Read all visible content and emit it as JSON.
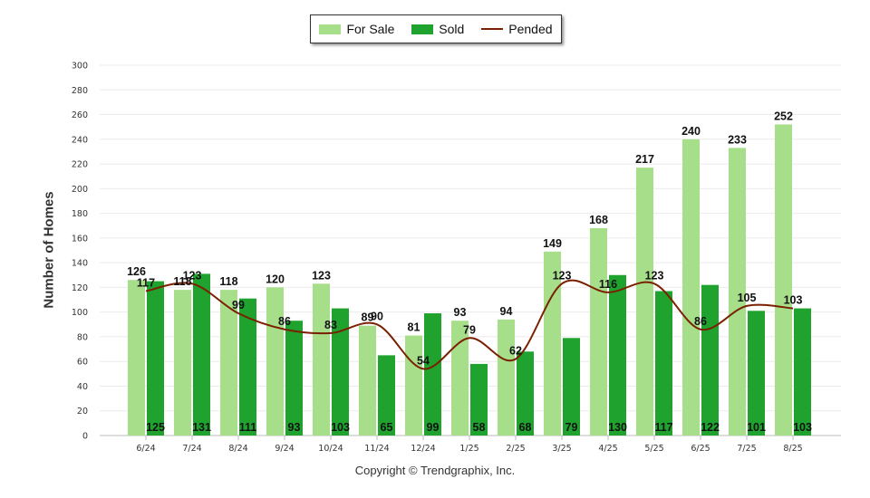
{
  "chart_data": {
    "type": "bar",
    "ylabel": "Number of Homes",
    "ylim": [
      0,
      300
    ],
    "ytick_step": 20,
    "categories": [
      "6/24",
      "7/24",
      "8/24",
      "9/24",
      "10/24",
      "11/24",
      "12/24",
      "1/25",
      "2/25",
      "3/25",
      "4/25",
      "5/25",
      "6/25",
      "7/25",
      "8/25"
    ],
    "series": [
      {
        "name": "For Sale",
        "type": "bar",
        "color": "#a6de8a",
        "values": [
          126,
          118,
          118,
          120,
          123,
          89,
          81,
          93,
          94,
          149,
          168,
          217,
          240,
          233,
          252
        ]
      },
      {
        "name": "Sold",
        "type": "bar",
        "color": "#1fa32e",
        "values": [
          125,
          131,
          111,
          93,
          103,
          65,
          99,
          58,
          68,
          79,
          130,
          117,
          122,
          101,
          103
        ]
      },
      {
        "name": "Pended",
        "type": "line",
        "color": "#7a2000",
        "values": [
          117,
          123,
          99,
          86,
          83,
          90,
          54,
          79,
          62,
          123,
          116,
          123,
          86,
          105,
          103
        ]
      }
    ],
    "grid": true,
    "legend_position": "top-center"
  },
  "copyright": "Copyright © Trendgraphix, Inc."
}
